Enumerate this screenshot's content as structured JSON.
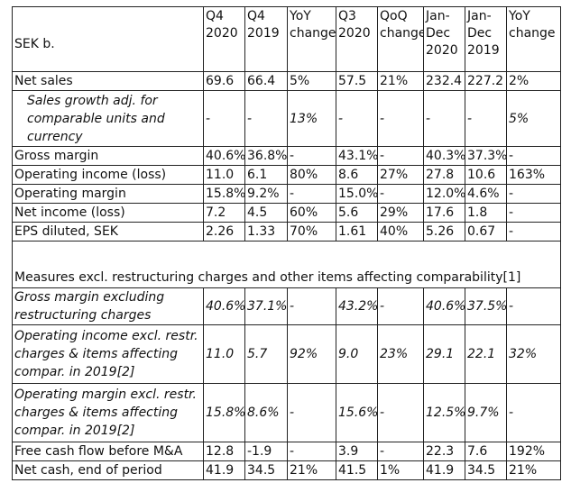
{
  "header": {
    "label": "SEK b.",
    "columns": [
      "Q4 2020",
      "Q4 2019",
      "YoY change",
      "Q3 2020",
      "QoQ change",
      "Jan-Dec 2020",
      "Jan-Dec 2019",
      "YoY change"
    ]
  },
  "rows": [
    {
      "label": "Net sales",
      "values": [
        "69.6",
        "66.4",
        "5%",
        "57.5",
        "21%",
        "232.4",
        "227.2",
        "2%"
      ]
    },
    {
      "label": "Sales growth adj. for comparable units and currency",
      "values": [
        "-",
        "-",
        "13%",
        "-",
        "-",
        "-",
        "-",
        "5%"
      ]
    },
    {
      "label": "Gross margin",
      "values": [
        "40.6%",
        "36.8%",
        "-",
        "43.1%",
        "-",
        "40.3%",
        "37.3%",
        "-"
      ]
    },
    {
      "label": "Operating income (loss)",
      "values": [
        "11.0",
        "6.1",
        "80%",
        "8.6",
        "27%",
        "27.8",
        "10.6",
        "163%"
      ]
    },
    {
      "label": "Operating margin",
      "values": [
        "15.8%",
        "9.2%",
        "-",
        "15.0%",
        "-",
        "12.0%",
        "4.6%",
        "-"
      ]
    },
    {
      "label": "Net income (loss)",
      "values": [
        "7.2",
        "4.5",
        "60%",
        "5.6",
        "29%",
        "17.6",
        "1.8",
        "-"
      ]
    },
    {
      "label": "EPS diluted, SEK",
      "values": [
        "2.26",
        "1.33",
        "70%",
        "1.61",
        "40%",
        "5.26",
        "0.67",
        "-"
      ]
    }
  ],
  "section_title": "Measures excl. restructuring charges and other items affecting comparability[1]",
  "excl_rows": [
    {
      "label": "Gross margin excluding restructuring charges",
      "values": [
        "40.6%",
        "37.1%",
        "-",
        "43.2%",
        "-",
        "40.6%",
        "37.5%",
        "-"
      ]
    },
    {
      "label": "Operating income excl. restr. charges & items affecting compar. in 2019[2]",
      "values": [
        "11.0",
        "5.7",
        "92%",
        "9.0",
        "23%",
        "29.1",
        "22.1",
        "32%"
      ]
    },
    {
      "label": "Operating margin excl. restr. charges & items affecting compar. in 2019[2]",
      "values": [
        "15.8%",
        "8.6%",
        "-",
        "15.6%",
        "-",
        "12.5%",
        "9.7%",
        "-"
      ]
    },
    {
      "label": "Free cash flow before M&A",
      "values": [
        "12.8",
        "-1.9",
        "-",
        "3.9",
        "-",
        "22.3",
        "7.6",
        "192%"
      ]
    },
    {
      "label": "Net cash, end of period",
      "values": [
        "41.9",
        "34.5",
        "21%",
        "41.5",
        "1%",
        "41.9",
        "34.5",
        "21%"
      ]
    }
  ]
}
